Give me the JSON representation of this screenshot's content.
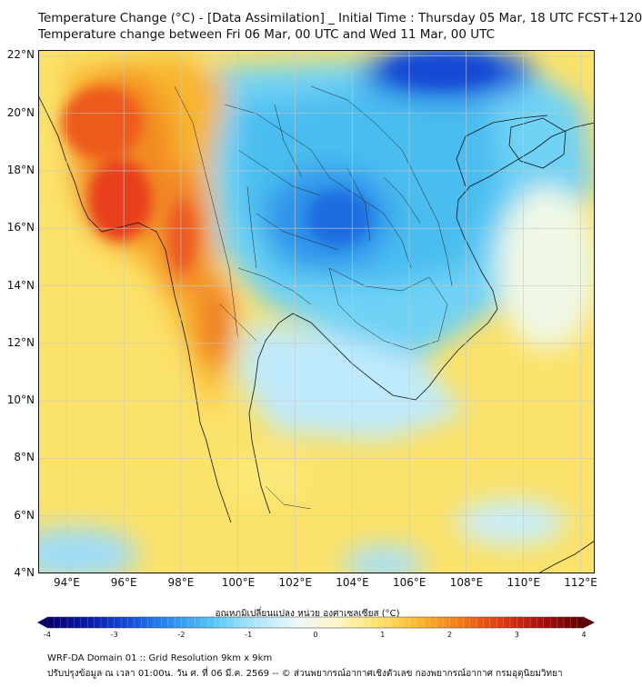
{
  "header": {
    "title_line1": "Temperature Change (°C) - [Data Assimilation] _ Initial Time : Thursday 05 Mar, 18 UTC FCST+120",
    "title_line2": "Temperature change between Fri 06 Mar, 00 UTC and Wed 11 Mar, 00 UTC"
  },
  "map": {
    "lon_labels": [
      "94°E",
      "96°E",
      "98°E",
      "100°E",
      "102°E",
      "104°E",
      "106°E",
      "108°E",
      "110°E",
      "112°E"
    ],
    "lat_labels": [
      "22°N",
      "20°N",
      "18°N",
      "16°N",
      "14°N",
      "12°N",
      "10°N",
      "8°N",
      "6°N",
      "4°N"
    ],
    "lon_values": [
      94,
      96,
      98,
      100,
      102,
      104,
      106,
      108,
      110,
      112
    ],
    "lat_values": [
      22,
      20,
      18,
      16,
      14,
      12,
      10,
      8,
      6,
      4
    ],
    "extent": {
      "lon_min": 93,
      "lon_max": 112.5,
      "lat_min": 4,
      "lat_max": 22.2
    }
  },
  "colorbar": {
    "title": "อุณหภูมิเปลี่ยนแปลง หน่วย องศาเซลเซียส (°C)",
    "tick_labels": [
      "-4",
      "-3",
      "-2",
      "-1",
      "0",
      "1",
      "2",
      "3",
      "4"
    ],
    "range": [
      -4,
      4
    ],
    "colors": [
      "#08006b",
      "#0a1aa8",
      "#1450d8",
      "#2a8ef0",
      "#55c6f5",
      "#a8e6fa",
      "#eaf7fb",
      "#fdf6c8",
      "#fde36a",
      "#f9b62e",
      "#f47a1a",
      "#e03a12",
      "#a80e0e",
      "#5e0000"
    ]
  },
  "footer": {
    "line1": "WRF-DA Domain 01 :: Grid Resolution 9km x 9km",
    "line2": "ปรับปรุงข้อมูล ณ เวลา 01:00น. วัน ศ. ที่ 06 มี.ค. 2569 -- © ส่วนพยากรณ์อากาศเชิงตัวเลข กองพยากรณ์อากาศ กรมอุตุนิยมวิทยา"
  }
}
